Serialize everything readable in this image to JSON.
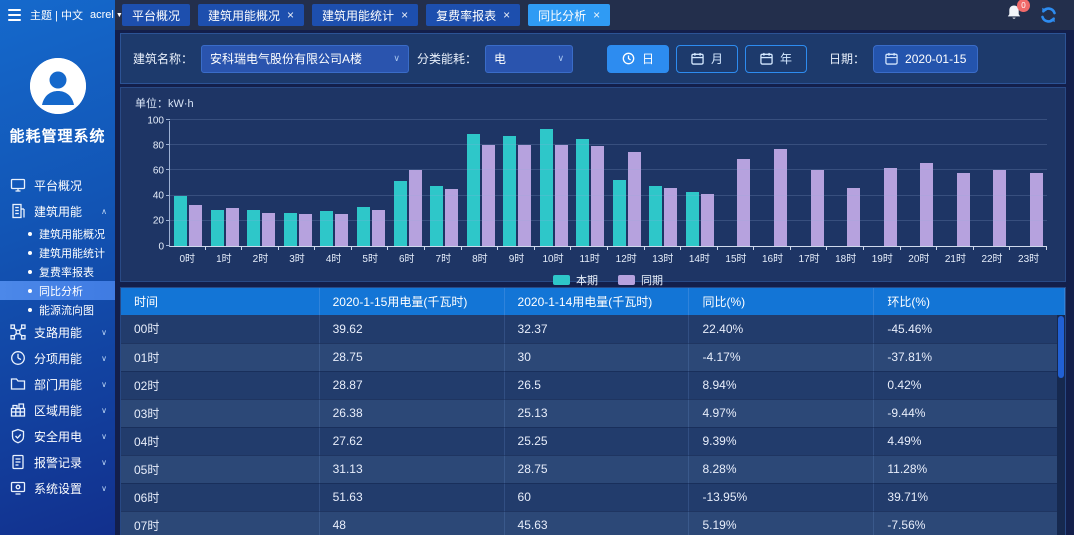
{
  "topbar": {
    "theme_language": "主题 | 中文",
    "user_name": "acrel",
    "notification_badge": "0"
  },
  "tabs": [
    {
      "label": "平台概况",
      "closable": false,
      "active": false
    },
    {
      "label": "建筑用能概况",
      "closable": true,
      "active": false
    },
    {
      "label": "建筑用能统计",
      "closable": true,
      "active": false
    },
    {
      "label": "复费率报表",
      "closable": true,
      "active": false
    },
    {
      "label": "同比分析",
      "closable": true,
      "active": true
    }
  ],
  "sidebar": {
    "app_title": "能耗管理系统",
    "menu": [
      {
        "label": "平台概况",
        "icon": "monitor-icon"
      },
      {
        "label": "建筑用能",
        "icon": "building-icon",
        "expanded": true,
        "children": [
          {
            "label": "建筑用能概况",
            "active": false
          },
          {
            "label": "建筑用能统计",
            "active": false
          },
          {
            "label": "复费率报表",
            "active": false
          },
          {
            "label": "同比分析",
            "active": true
          },
          {
            "label": "能源流向图",
            "active": false
          }
        ]
      },
      {
        "label": "支路用能",
        "icon": "branch-icon"
      },
      {
        "label": "分项用能",
        "icon": "gauge-icon"
      },
      {
        "label": "部门用能",
        "icon": "folder-icon"
      },
      {
        "label": "区域用能",
        "icon": "region-icon"
      },
      {
        "label": "安全用电",
        "icon": "shield-icon"
      },
      {
        "label": "报警记录",
        "icon": "alarm-log-icon"
      },
      {
        "label": "系统设置",
        "icon": "settings-icon"
      }
    ]
  },
  "filters": {
    "building_label": "建筑名称：",
    "building_value": "安科瑞电气股份有限公司A楼",
    "energy_label": "分类能耗：",
    "energy_value": "电",
    "period_buttons": [
      {
        "label": "日",
        "icon": "clock-icon",
        "active": true
      },
      {
        "label": "月",
        "icon": "calendar-icon",
        "active": false
      },
      {
        "label": "年",
        "icon": "calendar-icon",
        "active": false
      }
    ],
    "date_label": "日期：",
    "date_value": "2020-01-15"
  },
  "chart_data": {
    "type": "bar",
    "unit_label": "单位：kW·h",
    "ylabel": "kW·h",
    "categories": [
      "0时",
      "1时",
      "2时",
      "3时",
      "4时",
      "5时",
      "6时",
      "7时",
      "8时",
      "9时",
      "10时",
      "11时",
      "12时",
      "13时",
      "14时",
      "15时",
      "16时",
      "17时",
      "18时",
      "19时",
      "20时",
      "21时",
      "22时",
      "23时"
    ],
    "series": [
      {
        "name": "本期",
        "color": "#2ec7c9",
        "values": [
          39.62,
          28.75,
          28.87,
          26.38,
          27.62,
          31.13,
          51.63,
          48,
          89,
          87,
          93,
          85,
          52,
          48,
          43,
          null,
          null,
          null,
          null,
          null,
          null,
          null,
          null,
          null
        ]
      },
      {
        "name": "同期",
        "color": "#b6a2de",
        "values": [
          32.37,
          30,
          26.5,
          25.13,
          25.25,
          28.75,
          60,
          45.63,
          80,
          80,
          80,
          79,
          75,
          46,
          41,
          69,
          77,
          60,
          46,
          62,
          66,
          58,
          60,
          58
        ]
      }
    ],
    "ylim": [
      0,
      100
    ],
    "yticks": [
      0,
      20,
      40,
      60,
      80,
      100
    ],
    "grid": true,
    "legend_position": "bottom"
  },
  "table": {
    "headers": [
      "时间",
      "2020-1-15用电量(千瓦时)",
      "2020-1-14用电量(千瓦时)",
      "同比(%)",
      "环比(%)"
    ],
    "rows": [
      [
        "00时",
        "39.62",
        "32.37",
        "22.40%",
        "-45.46%"
      ],
      [
        "01时",
        "28.75",
        "30",
        "-4.17%",
        "-37.81%"
      ],
      [
        "02时",
        "28.87",
        "26.5",
        "8.94%",
        "0.42%"
      ],
      [
        "03时",
        "26.38",
        "25.13",
        "4.97%",
        "-9.44%"
      ],
      [
        "04时",
        "27.62",
        "25.25",
        "9.39%",
        "4.49%"
      ],
      [
        "05时",
        "31.13",
        "28.75",
        "8.28%",
        "11.28%"
      ],
      [
        "06时",
        "51.63",
        "60",
        "-13.95%",
        "39.71%"
      ],
      [
        "07时",
        "48",
        "45.63",
        "5.19%",
        "-7.56%"
      ]
    ]
  }
}
